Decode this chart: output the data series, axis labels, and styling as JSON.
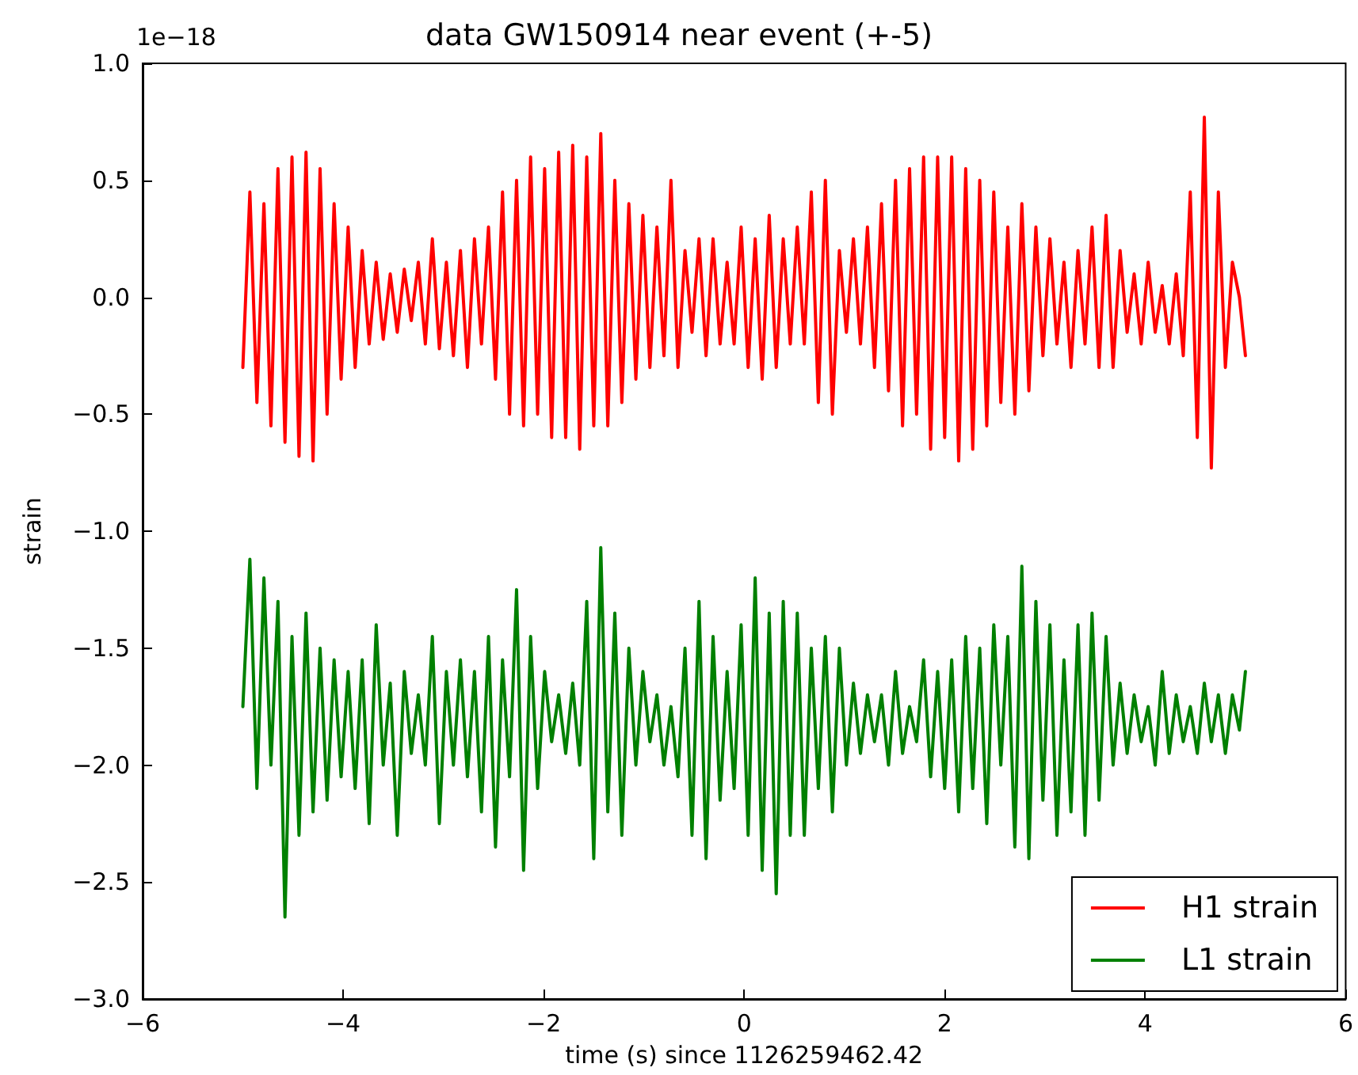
{
  "chart_data": {
    "type": "line",
    "title": "data GW150914 near event (+-5)",
    "xlabel": "time (s) since 1126259462.42",
    "ylabel": "strain",
    "annotations": [
      "1e−18"
    ],
    "x": [
      -5,
      -4.93,
      -4.86,
      -4.79,
      -4.72,
      -4.65,
      -4.58,
      -4.51,
      -4.44,
      -4.37,
      -4.3,
      -4.23,
      -4.16,
      -4.09,
      -4.02,
      -3.95,
      -3.88,
      -3.81,
      -3.74,
      -3.67,
      -3.6,
      -3.53,
      -3.46,
      -3.39,
      -3.32,
      -3.25,
      -3.18,
      -3.11,
      -3.04,
      -2.97,
      -2.9,
      -2.83,
      -2.76,
      -2.69,
      -2.62,
      -2.55,
      -2.48,
      -2.41,
      -2.34,
      -2.27,
      -2.2,
      -2.13,
      -2.06,
      -1.99,
      -1.92,
      -1.85,
      -1.78,
      -1.71,
      -1.64,
      -1.57,
      -1.5,
      -1.43,
      -1.36,
      -1.29,
      -1.22,
      -1.15,
      -1.08,
      -1.01,
      -0.94,
      -0.87,
      -0.8,
      -0.73,
      -0.66,
      -0.59,
      -0.52,
      -0.45,
      -0.38,
      -0.31,
      -0.24,
      -0.17,
      -0.1,
      -0.03,
      0.04,
      0.11,
      0.18,
      0.25,
      0.32,
      0.39,
      0.46,
      0.53,
      0.6,
      0.67,
      0.74,
      0.81,
      0.88,
      0.95,
      1.02,
      1.09,
      1.16,
      1.23,
      1.3,
      1.37,
      1.44,
      1.51,
      1.58,
      1.65,
      1.72,
      1.79,
      1.86,
      1.93,
      2,
      2.07,
      2.14,
      2.21,
      2.28,
      2.35,
      2.42,
      2.49,
      2.56,
      2.63,
      2.7,
      2.77,
      2.84,
      2.91,
      2.98,
      3.05,
      3.12,
      3.19,
      3.26,
      3.33,
      3.4,
      3.47,
      3.54,
      3.61,
      3.68,
      3.75,
      3.82,
      3.89,
      3.96,
      4.03,
      4.1,
      4.17,
      4.24,
      4.31,
      4.38,
      4.45,
      4.52,
      4.59,
      4.66,
      4.73,
      4.8,
      4.87,
      4.94,
      5
    ],
    "series": [
      {
        "name": "H1 strain",
        "color": "#ff0000",
        "values": [
          -0.3,
          0.45,
          -0.45,
          0.4,
          -0.55,
          0.55,
          -0.62,
          0.6,
          -0.68,
          0.62,
          -0.7,
          0.55,
          -0.5,
          0.4,
          -0.35,
          0.3,
          -0.3,
          0.2,
          -0.2,
          0.15,
          -0.18,
          0.1,
          -0.15,
          0.12,
          -0.1,
          0.15,
          -0.2,
          0.25,
          -0.22,
          0.15,
          -0.25,
          0.2,
          -0.3,
          0.25,
          -0.2,
          0.3,
          -0.35,
          0.45,
          -0.5,
          0.5,
          -0.55,
          0.6,
          -0.5,
          0.55,
          -0.6,
          0.62,
          -0.6,
          0.65,
          -0.65,
          0.6,
          -0.55,
          0.7,
          -0.55,
          0.5,
          -0.45,
          0.4,
          -0.35,
          0.35,
          -0.3,
          0.3,
          -0.25,
          0.5,
          -0.3,
          0.2,
          -0.15,
          0.25,
          -0.25,
          0.25,
          -0.2,
          0.15,
          -0.2,
          0.3,
          -0.3,
          0.25,
          -0.35,
          0.35,
          -0.3,
          0.25,
          -0.2,
          0.3,
          -0.2,
          0.45,
          -0.45,
          0.5,
          -0.5,
          0.2,
          -0.15,
          0.25,
          -0.2,
          0.3,
          -0.3,
          0.4,
          -0.4,
          0.5,
          -0.55,
          0.55,
          -0.5,
          0.6,
          -0.65,
          0.6,
          -0.6,
          0.6,
          -0.7,
          0.55,
          -0.65,
          0.5,
          -0.55,
          0.45,
          -0.45,
          0.3,
          -0.5,
          0.4,
          -0.4,
          0.3,
          -0.25,
          0.25,
          -0.2,
          0.15,
          -0.3,
          0.2,
          -0.2,
          0.3,
          -0.3,
          0.35,
          -0.3,
          0.2,
          -0.15,
          0.1,
          -0.2,
          0.15,
          -0.15,
          0.05,
          -0.2,
          0.1,
          -0.25,
          0.45,
          -0.6,
          0.77,
          -0.73,
          0.45,
          -0.3,
          0.15,
          0,
          -0.25
        ]
      },
      {
        "name": "L1 strain",
        "color": "#008000",
        "values": [
          -1.75,
          -1.12,
          -2.1,
          -1.2,
          -2,
          -1.3,
          -2.65,
          -1.45,
          -2.3,
          -1.35,
          -2.2,
          -1.5,
          -2.15,
          -1.55,
          -2.05,
          -1.6,
          -2.1,
          -1.55,
          -2.25,
          -1.4,
          -2,
          -1.65,
          -2.3,
          -1.6,
          -1.95,
          -1.7,
          -2,
          -1.45,
          -2.25,
          -1.6,
          -2,
          -1.55,
          -2.05,
          -1.6,
          -2.2,
          -1.45,
          -2.35,
          -1.55,
          -2.05,
          -1.25,
          -2.45,
          -1.45,
          -2.1,
          -1.6,
          -1.9,
          -1.7,
          -1.95,
          -1.65,
          -2,
          -1.3,
          -2.4,
          -1.07,
          -2.2,
          -1.35,
          -2.3,
          -1.5,
          -2,
          -1.6,
          -1.9,
          -1.7,
          -2,
          -1.75,
          -2.05,
          -1.5,
          -2.3,
          -1.3,
          -2.4,
          -1.45,
          -2.15,
          -1.6,
          -2.1,
          -1.4,
          -2.3,
          -1.2,
          -2.45,
          -1.35,
          -2.55,
          -1.3,
          -2.3,
          -1.35,
          -2.3,
          -1.5,
          -2.1,
          -1.45,
          -2.2,
          -1.5,
          -2,
          -1.65,
          -1.95,
          -1.7,
          -1.9,
          -1.7,
          -2,
          -1.6,
          -1.95,
          -1.75,
          -1.9,
          -1.55,
          -2.05,
          -1.6,
          -2.1,
          -1.55,
          -2.2,
          -1.45,
          -2.1,
          -1.5,
          -2.25,
          -1.4,
          -2,
          -1.45,
          -2.35,
          -1.15,
          -2.4,
          -1.3,
          -2.15,
          -1.4,
          -2.3,
          -1.55,
          -2.2,
          -1.4,
          -2.3,
          -1.35,
          -2.15,
          -1.45,
          -2,
          -1.65,
          -1.95,
          -1.7,
          -1.9,
          -1.75,
          -2,
          -1.6,
          -1.95,
          -1.7,
          -1.9,
          -1.75,
          -1.95,
          -1.65,
          -1.9,
          -1.7,
          -1.95,
          -1.7,
          -1.85,
          -1.6
        ]
      }
    ],
    "xlim": [
      -6,
      6
    ],
    "xticks": [
      {
        "value": -6,
        "label": "−6"
      },
      {
        "value": -4,
        "label": "−4"
      },
      {
        "value": -2,
        "label": "−2"
      },
      0,
      2,
      4,
      6
    ],
    "ylim": [
      -3,
      1
    ],
    "yticks": [
      {
        "value": -3,
        "label": "−3.0"
      },
      {
        "value": -2.5,
        "label": "−2.5"
      },
      {
        "value": -2,
        "label": "−2.0"
      },
      {
        "value": -1.5,
        "label": "−1.5"
      },
      {
        "value": -1,
        "label": "−1.0"
      },
      {
        "value": -0.5,
        "label": "−0.5"
      },
      {
        "value": 0,
        "label": "0.0"
      },
      {
        "value": 0.5,
        "label": "0.5"
      },
      {
        "value": 1,
        "label": "1.0"
      }
    ],
    "grid": false,
    "legend": "bottom right",
    "marker": "none",
    "line_style": "solid"
  }
}
